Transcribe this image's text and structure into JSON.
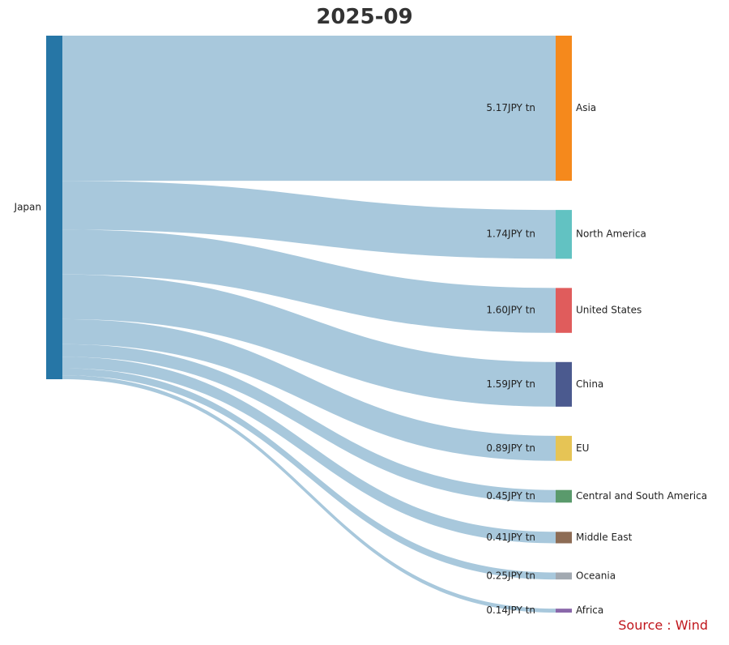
{
  "chart_data": {
    "type": "sankey",
    "title": "2025-09",
    "source_label": "Source : Wind",
    "unit": "JPY tn",
    "link_color": "#a8c8dc",
    "source_node": {
      "name": "Japan",
      "color": "#2676a6"
    },
    "targets": [
      {
        "name": "Asia",
        "value": 5.17,
        "label": "5.17JPY tn",
        "color": "#f5891c"
      },
      {
        "name": "North America",
        "value": 1.74,
        "label": "1.74JPY tn",
        "color": "#62c2c2"
      },
      {
        "name": "United States",
        "value": 1.6,
        "label": "1.60JPY tn",
        "color": "#e05c5c"
      },
      {
        "name": "China",
        "value": 1.59,
        "label": "1.59JPY tn",
        "color": "#4b5a8f"
      },
      {
        "name": "EU",
        "value": 0.89,
        "label": "0.89JPY tn",
        "color": "#e6c455"
      },
      {
        "name": "Central and South America",
        "value": 0.45,
        "label": "0.45JPY tn",
        "color": "#5a9a6c"
      },
      {
        "name": "Middle East",
        "value": 0.41,
        "label": "0.41JPY tn",
        "color": "#8d6c55"
      },
      {
        "name": "Oceania",
        "value": 0.25,
        "label": "0.25JPY tn",
        "color": "#a2a9b1"
      },
      {
        "name": "Africa",
        "value": 0.14,
        "label": "0.14JPY tn",
        "color": "#8a68aa"
      }
    ]
  }
}
